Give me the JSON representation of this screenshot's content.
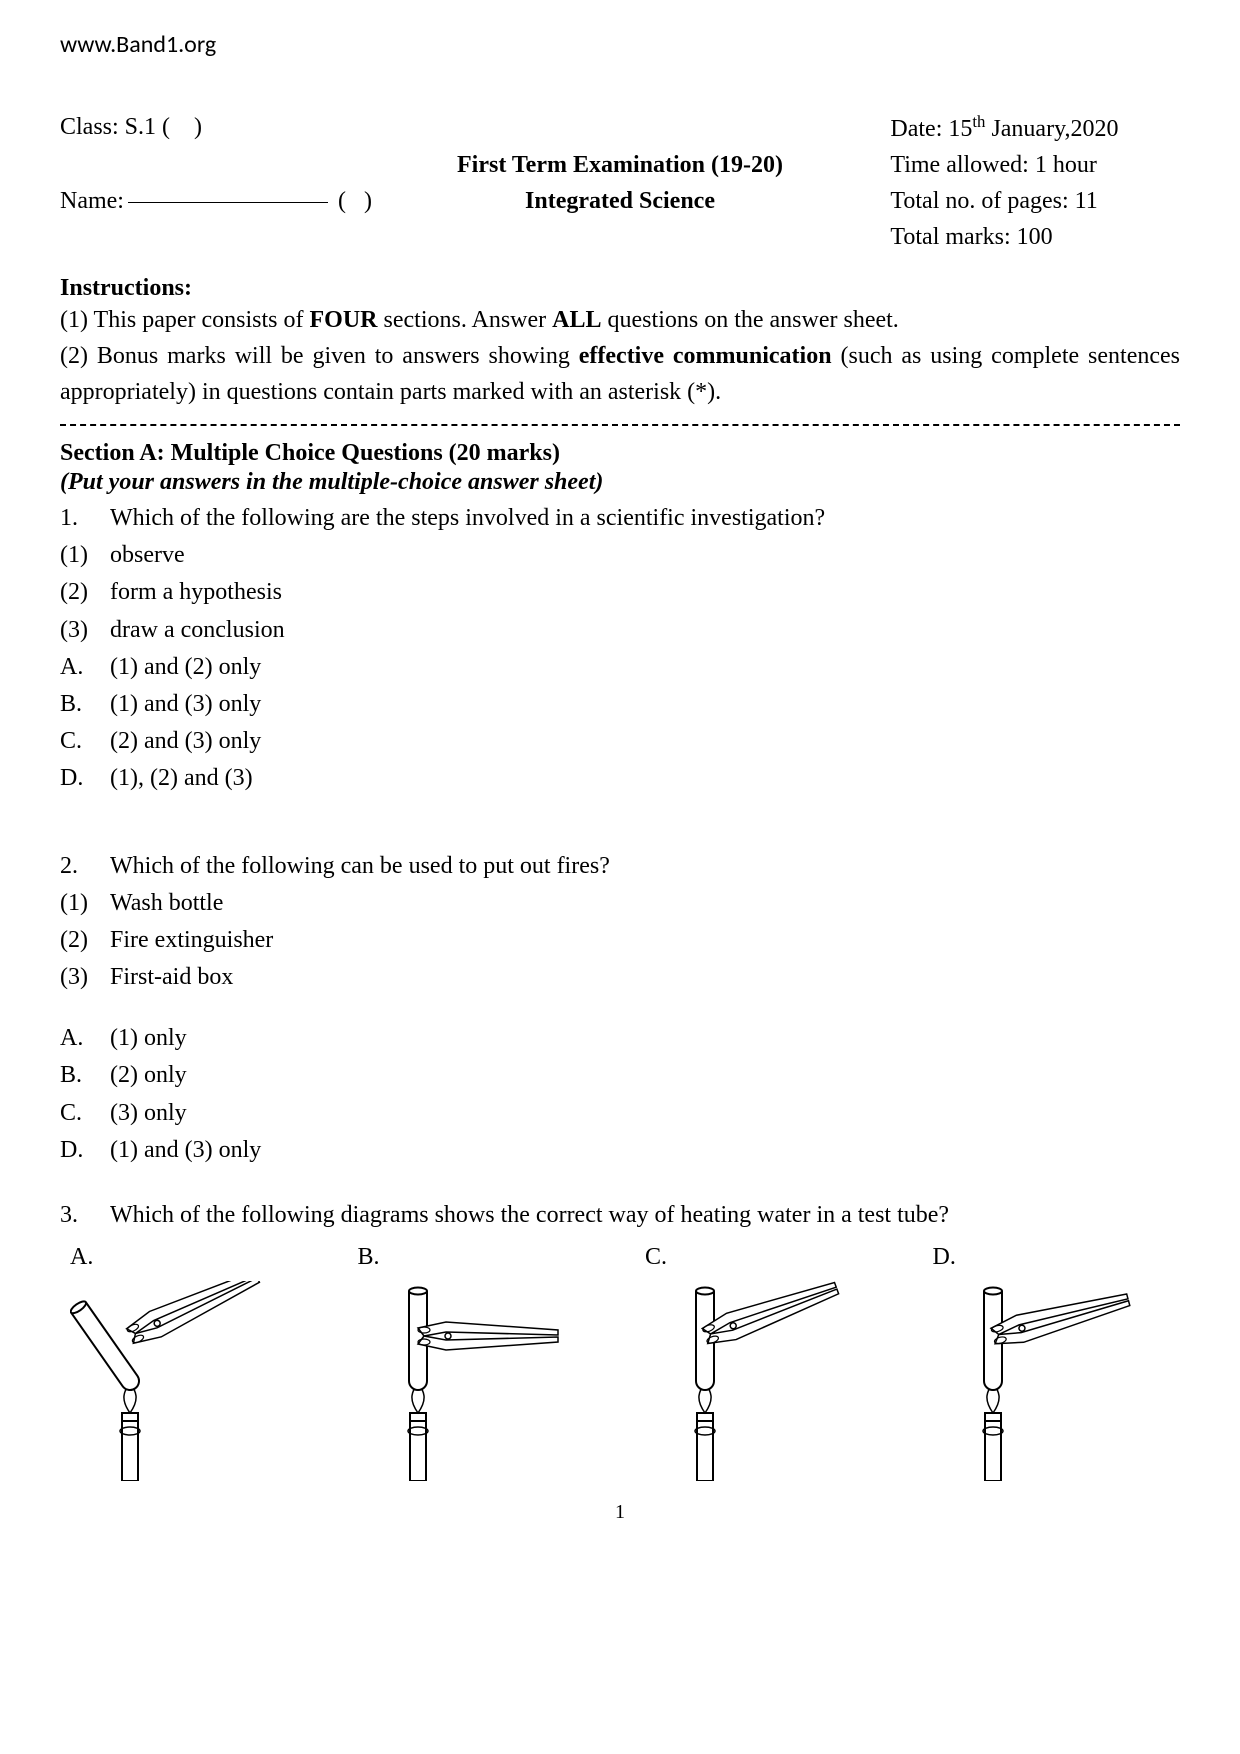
{
  "url": "www.Band1.org",
  "header": {
    "class_label": "Class: S.1 (    )",
    "name_label": "Name:",
    "name_suffix": "(   )",
    "title_line1": "First Term Examination (19-20)",
    "title_line2": "Integrated Science",
    "date_prefix": "Date: 15",
    "date_sup": "th",
    "date_suffix": " January,2020",
    "time_allowed": "Time allowed: 1 hour",
    "total_pages": "Total no. of pages: 11",
    "total_marks": "Total marks: 100"
  },
  "instructions": {
    "heading": "Instructions:",
    "line1_a": "(1) This paper consists of ",
    "line1_b": "FOUR",
    "line1_c": " sections. Answer ",
    "line1_d": "ALL",
    "line1_e": " questions on the answer sheet.",
    "line2_a": "(2) Bonus marks will be given to answers showing ",
    "line2_b": "effective communication",
    "line2_c": " (such as using complete sentences appropriately) in questions contain parts marked with an asterisk (*)."
  },
  "sectionA": {
    "heading": "Section A: Multiple Choice Questions (20 marks)",
    "sub": "(Put your answers in the multiple-choice answer sheet)"
  },
  "q1": {
    "num": "1.",
    "text": "Which of the following are the steps involved in a scientific investigation?",
    "stmts": [
      {
        "n": "(1)",
        "t": "observe"
      },
      {
        "n": "(2)",
        "t": "form a hypothesis"
      },
      {
        "n": "(3)",
        "t": "draw a conclusion"
      }
    ],
    "opts": [
      {
        "n": "A.",
        "t": "(1) and (2) only"
      },
      {
        "n": "B.",
        "t": "(1) and (3) only"
      },
      {
        "n": "C.",
        "t": "(2) and (3) only"
      },
      {
        "n": "D.",
        "t": "(1), (2) and (3)"
      }
    ]
  },
  "q2": {
    "num": "2.",
    "text": "Which of the following can be used to put out fires?",
    "stmts": [
      {
        "n": "(1)",
        "t": "Wash bottle"
      },
      {
        "n": "(2)",
        "t": "Fire extinguisher"
      },
      {
        "n": "(3)",
        "t": "First-aid box"
      }
    ],
    "opts": [
      {
        "n": "A.",
        "t": "(1) only"
      },
      {
        "n": "B.",
        "t": "(2) only"
      },
      {
        "n": "C.",
        "t": "(3) only"
      },
      {
        "n": "D.",
        "t": "(1) and (3) only"
      }
    ]
  },
  "q3": {
    "num": "3.",
    "text": "Which of the following diagrams shows the correct way of heating water in a test tube?",
    "diagrams": [
      "A.",
      "B.",
      "C.",
      "D."
    ],
    "tube_angles": [
      35,
      0,
      0,
      0
    ],
    "holder_angles": [
      -25,
      0,
      -20,
      -15
    ]
  },
  "page_number": "1",
  "colors": {
    "text": "#000000",
    "background": "#ffffff",
    "stroke": "#000000",
    "fill": "#ffffff"
  }
}
